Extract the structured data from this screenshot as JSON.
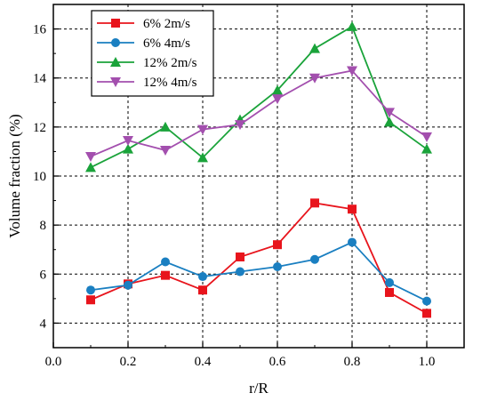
{
  "chart_data": {
    "type": "line",
    "title": "",
    "xlabel": "r/R",
    "ylabel": "Volume fraction (%)",
    "xlim": [
      0.0,
      1.1
    ],
    "ylim": [
      3.0,
      17.0
    ],
    "xticks": [
      "0.0",
      "0.2",
      "0.4",
      "0.6",
      "0.8",
      "1.0"
    ],
    "yticks": [
      "4",
      "6",
      "8",
      "10",
      "12",
      "14",
      "16"
    ],
    "grid": true,
    "legend_position": "top-left",
    "x": [
      0.1,
      0.2,
      0.3,
      0.4,
      0.5,
      0.6,
      0.7,
      0.8,
      0.9,
      1.0
    ],
    "series": [
      {
        "name": "6%  2m/s",
        "color": "#e8141c",
        "marker": "square",
        "values": [
          4.95,
          5.6,
          5.95,
          5.35,
          6.7,
          7.2,
          8.9,
          8.65,
          5.25,
          4.4
        ]
      },
      {
        "name": "6%  4m/s",
        "color": "#1a7fc1",
        "marker": "circle",
        "values": [
          5.35,
          5.55,
          6.5,
          5.9,
          6.1,
          6.3,
          6.6,
          7.3,
          5.65,
          4.9
        ]
      },
      {
        "name": "12% 2m/s",
        "color": "#1aa33a",
        "marker": "triangle-up",
        "values": [
          10.35,
          11.1,
          12.0,
          10.75,
          12.3,
          13.5,
          15.2,
          16.1,
          12.2,
          11.1
        ]
      },
      {
        "name": "12% 4m/s",
        "color": "#a34fae",
        "marker": "triangle-down",
        "values": [
          10.8,
          11.45,
          11.05,
          11.9,
          12.1,
          13.15,
          14.0,
          14.3,
          12.6,
          11.6
        ]
      }
    ]
  }
}
